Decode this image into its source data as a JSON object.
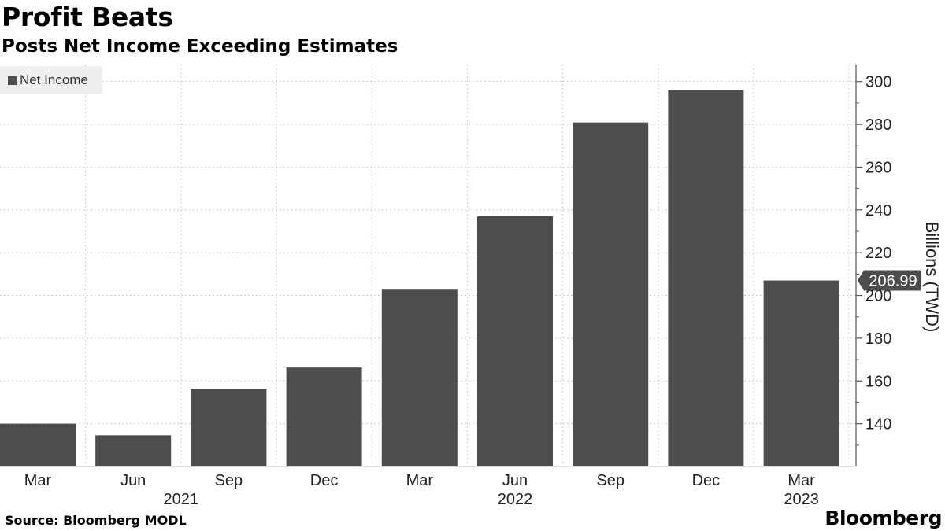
{
  "header": {
    "title": "Profit Beats",
    "subtitle": "Posts Net Income Exceeding Estimates"
  },
  "footer": {
    "source": "Source: Bloomberg MODL",
    "brand": "Bloomberg"
  },
  "colors": {
    "bar": "#4d4d4d",
    "grid": "#cccccc",
    "axis": "#555555",
    "callout_bg": "#4d4d4d",
    "callout_text": "#ffffff"
  },
  "chart_data": {
    "type": "bar",
    "title": "Profit Beats",
    "subtitle": "Posts Net Income Exceeding Estimates",
    "categories": [
      "Mar",
      "Jun",
      "Sep",
      "Dec",
      "Mar",
      "Jun",
      "Sep",
      "Dec",
      "Mar"
    ],
    "year_labels": [
      {
        "label": "2021",
        "category_index": 1.5
      },
      {
        "label": "2022",
        "category_index": 5
      },
      {
        "label": "2023",
        "category_index": 8
      }
    ],
    "series": [
      {
        "name": "Net Income",
        "values": [
          140,
          134.6,
          156.3,
          166.3,
          202.7,
          237.0,
          280.9,
          296.0,
          206.99
        ]
      }
    ],
    "ylabel": "Billions (TWD)",
    "ylim": [
      120,
      308
    ],
    "yticks": [
      140,
      160,
      180,
      200,
      220,
      240,
      260,
      280,
      300
    ],
    "y_axis_side": "right",
    "grid": true,
    "legend": "top-left",
    "last_value_label": "206.99"
  }
}
